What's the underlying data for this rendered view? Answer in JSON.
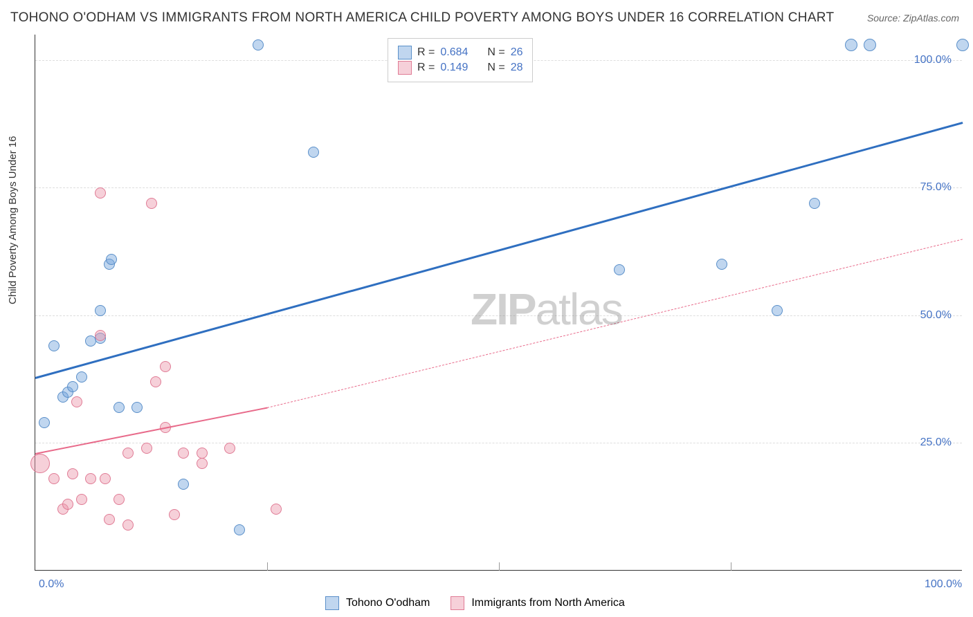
{
  "title": "TOHONO O'ODHAM VS IMMIGRANTS FROM NORTH AMERICA CHILD POVERTY AMONG BOYS UNDER 16 CORRELATION CHART",
  "source_label": "Source: ZipAtlas.com",
  "ylabel": "Child Poverty Among Boys Under 16",
  "watermark_bold": "ZIP",
  "watermark_rest": "atlas",
  "chart": {
    "xlim": [
      0,
      100
    ],
    "ylim": [
      0,
      105
    ],
    "ygrid": [
      25,
      50,
      75,
      100
    ],
    "ytick_labels": [
      "25.0%",
      "50.0%",
      "75.0%",
      "100.0%"
    ],
    "xticks": [
      0,
      50,
      100
    ],
    "xtick_labels": [
      "0.0%",
      "",
      "100.0%"
    ],
    "xtick_minor": [
      25,
      75
    ],
    "background_color": "#ffffff",
    "grid_color": "#dddddd",
    "axis_color": "#333333",
    "label_color": "#4472c4"
  },
  "series": [
    {
      "name": "Tohono O'odham",
      "color_fill": "rgba(115,165,220,0.45)",
      "color_stroke": "#5a8fc9",
      "trend_color": "#2f6fc0",
      "trend_width": 3,
      "trend_dash": "solid",
      "trend": {
        "x1": 0,
        "y1": 38,
        "x2": 100,
        "y2": 88
      },
      "r": "0.684",
      "n": "26",
      "points": [
        {
          "x": 2,
          "y": 44,
          "r": 8
        },
        {
          "x": 1,
          "y": 29,
          "r": 8
        },
        {
          "x": 3,
          "y": 34,
          "r": 8
        },
        {
          "x": 3.5,
          "y": 35,
          "r": 8
        },
        {
          "x": 4,
          "y": 36,
          "r": 8
        },
        {
          "x": 5,
          "y": 38,
          "r": 8
        },
        {
          "x": 6,
          "y": 45,
          "r": 8
        },
        {
          "x": 7,
          "y": 45.5,
          "r": 8
        },
        {
          "x": 7,
          "y": 51,
          "r": 8
        },
        {
          "x": 9,
          "y": 32,
          "r": 8
        },
        {
          "x": 8,
          "y": 60,
          "r": 8
        },
        {
          "x": 8.2,
          "y": 61,
          "r": 8
        },
        {
          "x": 11,
          "y": 32,
          "r": 8
        },
        {
          "x": 16,
          "y": 17,
          "r": 8
        },
        {
          "x": 22,
          "y": 8,
          "r": 8
        },
        {
          "x": 24,
          "y": 103,
          "r": 8
        },
        {
          "x": 30,
          "y": 82,
          "r": 8
        },
        {
          "x": 63,
          "y": 59,
          "r": 8
        },
        {
          "x": 74,
          "y": 60,
          "r": 8
        },
        {
          "x": 80,
          "y": 51,
          "r": 8
        },
        {
          "x": 84,
          "y": 72,
          "r": 8
        },
        {
          "x": 88,
          "y": 103,
          "r": 9
        },
        {
          "x": 90,
          "y": 103,
          "r": 9
        },
        {
          "x": 100,
          "y": 103,
          "r": 9
        }
      ]
    },
    {
      "name": "Immigrants from North America",
      "color_fill": "rgba(235,150,170,0.45)",
      "color_stroke": "#e07b95",
      "trend_color": "#e86a8a",
      "trend_width": 2,
      "trend_dash": "solid",
      "trend": {
        "x1": 0,
        "y1": 23,
        "x2": 25,
        "y2": 32
      },
      "trend_ext_dash": {
        "x1": 25,
        "y1": 32,
        "x2": 100,
        "y2": 65
      },
      "r": "0.149",
      "n": "28",
      "points": [
        {
          "x": 0.5,
          "y": 21,
          "r": 14
        },
        {
          "x": 2,
          "y": 18,
          "r": 8
        },
        {
          "x": 3,
          "y": 12,
          "r": 8
        },
        {
          "x": 3.5,
          "y": 13,
          "r": 8
        },
        {
          "x": 4,
          "y": 19,
          "r": 8
        },
        {
          "x": 4.5,
          "y": 33,
          "r": 8
        },
        {
          "x": 5,
          "y": 14,
          "r": 8
        },
        {
          "x": 6,
          "y": 18,
          "r": 8
        },
        {
          "x": 7,
          "y": 74,
          "r": 8
        },
        {
          "x": 7,
          "y": 46,
          "r": 8
        },
        {
          "x": 7.5,
          "y": 18,
          "r": 8
        },
        {
          "x": 8,
          "y": 10,
          "r": 8
        },
        {
          "x": 9,
          "y": 14,
          "r": 8
        },
        {
          "x": 10,
          "y": 23,
          "r": 8
        },
        {
          "x": 10,
          "y": 9,
          "r": 8
        },
        {
          "x": 12,
          "y": 24,
          "r": 8
        },
        {
          "x": 12.5,
          "y": 72,
          "r": 8
        },
        {
          "x": 13,
          "y": 37,
          "r": 8
        },
        {
          "x": 14,
          "y": 40,
          "r": 8
        },
        {
          "x": 14,
          "y": 28,
          "r": 8
        },
        {
          "x": 15,
          "y": 11,
          "r": 8
        },
        {
          "x": 16,
          "y": 23,
          "r": 8
        },
        {
          "x": 18,
          "y": 23,
          "r": 8
        },
        {
          "x": 18,
          "y": 21,
          "r": 8
        },
        {
          "x": 21,
          "y": 24,
          "r": 8
        },
        {
          "x": 26,
          "y": 12,
          "r": 8
        }
      ]
    }
  ],
  "legend_top": {
    "r_label": "R =",
    "n_label": "N ="
  },
  "legend_bottom": [
    {
      "swatch_fill": "rgba(115,165,220,0.45)",
      "swatch_stroke": "#5a8fc9",
      "label": "Tohono O'odham"
    },
    {
      "swatch_fill": "rgba(235,150,170,0.45)",
      "swatch_stroke": "#e07b95",
      "label": "Immigrants from North America"
    }
  ]
}
